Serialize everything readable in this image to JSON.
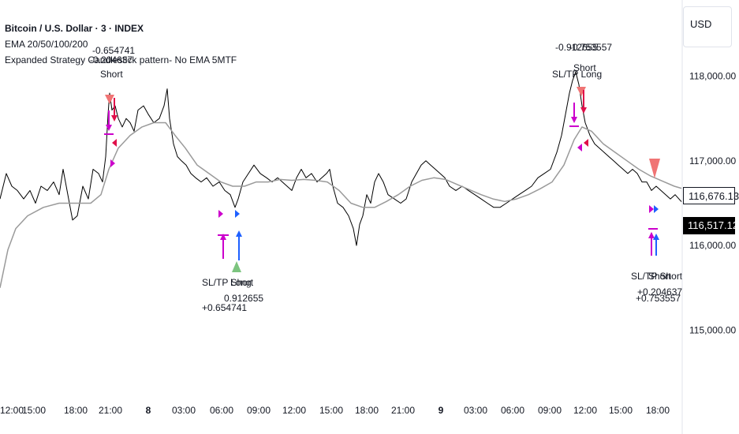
{
  "legend": {
    "symbol": "Bitcoin / U.S. Dollar · 3 · INDEX",
    "indicator1": "EMA 20/50/100/200",
    "indicator2": "Expanded Strategy Candlestick pattern- No EMA 5MTF"
  },
  "currency": "USD",
  "price_tags": {
    "ema": "116,676.13",
    "last": "116,517.12"
  },
  "colors": {
    "price": "#000000",
    "ema": "#9a9a9a",
    "short_marker": "#f07474",
    "long_marker": "#7cc47f",
    "sl_tp": "#cc00cc",
    "exit_short": "#e0104a",
    "exit_long": "#1e60ff"
  },
  "annotations": [
    {
      "id": "a1",
      "text": "-0.654741"
    },
    {
      "id": "a2",
      "text": "-0.204637"
    },
    {
      "id": "a3",
      "text": "Short"
    },
    {
      "id": "a4",
      "text": "-0.912655"
    },
    {
      "id": "a5",
      "text": "-0.753557"
    },
    {
      "id": "a6",
      "text": "SL/TP Long"
    },
    {
      "id": "a7",
      "text": "Short"
    },
    {
      "id": "a8",
      "text": "SL/TP Short"
    },
    {
      "id": "a9",
      "text": "Long"
    },
    {
      "id": "a10",
      "text": "+0.654741"
    },
    {
      "id": "a11",
      "text": "0.912655"
    },
    {
      "id": "a12",
      "text": "SL/TP Short"
    },
    {
      "id": "a13",
      "text": "Short"
    },
    {
      "id": "a14",
      "text": "+0.753557"
    },
    {
      "id": "a15",
      "text": "+0.204637"
    }
  ],
  "chart_data": {
    "type": "line",
    "ylim": [
      114500,
      118900
    ],
    "y_ticks": [
      {
        "value": 118000,
        "label": "118,000.00"
      },
      {
        "value": 117000,
        "label": "117,000.00"
      },
      {
        "value": 116000,
        "label": "116,000.00"
      },
      {
        "value": 115000,
        "label": "115,000.00"
      }
    ],
    "x_range": [
      0,
      920
    ],
    "x_ticks": [
      {
        "pos": 0,
        "label": "12:00",
        "bold": false
      },
      {
        "pos": 43,
        "label": "15:00",
        "bold": false
      },
      {
        "pos": 96,
        "label": "18:00",
        "bold": false
      },
      {
        "pos": 140,
        "label": "21:00",
        "bold": false
      },
      {
        "pos": 188,
        "label": "8",
        "bold": true
      },
      {
        "pos": 233,
        "label": "03:00",
        "bold": false
      },
      {
        "pos": 281,
        "label": "06:00",
        "bold": false
      },
      {
        "pos": 328,
        "label": "09:00",
        "bold": false
      },
      {
        "pos": 373,
        "label": "12:00",
        "bold": false
      },
      {
        "pos": 420,
        "label": "15:00",
        "bold": false
      },
      {
        "pos": 465,
        "label": "18:00",
        "bold": false
      },
      {
        "pos": 511,
        "label": "21:00",
        "bold": false
      },
      {
        "pos": 559,
        "label": "9",
        "bold": true
      },
      {
        "pos": 603,
        "label": "03:00",
        "bold": false
      },
      {
        "pos": 650,
        "label": "06:00",
        "bold": false
      },
      {
        "pos": 697,
        "label": "09:00",
        "bold": false
      },
      {
        "pos": 742,
        "label": "12:00",
        "bold": false
      },
      {
        "pos": 787,
        "label": "15:00",
        "bold": false
      },
      {
        "pos": 834,
        "label": "18:00",
        "bold": false
      }
    ],
    "series": [
      {
        "values": [
          [
            0,
            116550
          ],
          [
            8,
            116850
          ],
          [
            15,
            116700
          ],
          [
            22,
            116650
          ],
          [
            30,
            116550
          ],
          [
            38,
            116650
          ],
          [
            45,
            116500
          ],
          [
            52,
            116700
          ],
          [
            60,
            116650
          ],
          [
            68,
            116750
          ],
          [
            75,
            116600
          ],
          [
            80,
            116900
          ],
          [
            85,
            116650
          ],
          [
            92,
            116300
          ],
          [
            98,
            116350
          ],
          [
            105,
            116700
          ],
          [
            112,
            116550
          ],
          [
            118,
            116900
          ],
          [
            125,
            116850
          ],
          [
            130,
            116750
          ],
          [
            134,
            117050
          ],
          [
            137,
            117550
          ],
          [
            139,
            117800
          ],
          [
            142,
            117600
          ],
          [
            146,
            117650
          ],
          [
            150,
            117500
          ],
          [
            155,
            117400
          ],
          [
            160,
            117500
          ],
          [
            165,
            117450
          ],
          [
            170,
            117350
          ],
          [
            175,
            117600
          ],
          [
            182,
            117650
          ],
          [
            188,
            117550
          ],
          [
            195,
            117450
          ],
          [
            202,
            117500
          ],
          [
            208,
            117650
          ],
          [
            212,
            117850
          ],
          [
            215,
            117500
          ],
          [
            220,
            117200
          ],
          [
            225,
            117050
          ],
          [
            230,
            117000
          ],
          [
            236,
            116950
          ],
          [
            242,
            116850
          ],
          [
            248,
            116800
          ],
          [
            255,
            116750
          ],
          [
            262,
            116800
          ],
          [
            270,
            116700
          ],
          [
            278,
            116750
          ],
          [
            285,
            116650
          ],
          [
            292,
            116600
          ],
          [
            298,
            116450
          ],
          [
            302,
            116550
          ],
          [
            308,
            116750
          ],
          [
            315,
            116850
          ],
          [
            322,
            116950
          ],
          [
            330,
            116850
          ],
          [
            338,
            116800
          ],
          [
            345,
            116750
          ],
          [
            352,
            116800
          ],
          [
            358,
            116750
          ],
          [
            364,
            116700
          ],
          [
            370,
            116650
          ],
          [
            376,
            116800
          ],
          [
            382,
            116900
          ],
          [
            388,
            116800
          ],
          [
            395,
            116850
          ],
          [
            402,
            116750
          ],
          [
            408,
            116800
          ],
          [
            414,
            116850
          ],
          [
            418,
            116900
          ],
          [
            422,
            116700
          ],
          [
            428,
            116500
          ],
          [
            435,
            116450
          ],
          [
            442,
            116350
          ],
          [
            448,
            116200
          ],
          [
            452,
            116000
          ],
          [
            456,
            116250
          ],
          [
            460,
            116350
          ],
          [
            465,
            116600
          ],
          [
            470,
            116500
          ],
          [
            475,
            116750
          ],
          [
            480,
            116850
          ],
          [
            486,
            116750
          ],
          [
            492,
            116600
          ],
          [
            500,
            116550
          ],
          [
            508,
            116500
          ],
          [
            515,
            116550
          ],
          [
            522,
            116750
          ],
          [
            528,
            116850
          ],
          [
            534,
            116950
          ],
          [
            540,
            117000
          ],
          [
            546,
            116950
          ],
          [
            552,
            116900
          ],
          [
            558,
            116850
          ],
          [
            564,
            116800
          ],
          [
            570,
            116700
          ],
          [
            578,
            116650
          ],
          [
            586,
            116700
          ],
          [
            594,
            116650
          ],
          [
            602,
            116600
          ],
          [
            610,
            116550
          ],
          [
            618,
            116500
          ],
          [
            626,
            116450
          ],
          [
            634,
            116450
          ],
          [
            642,
            116500
          ],
          [
            650,
            116550
          ],
          [
            658,
            116600
          ],
          [
            666,
            116650
          ],
          [
            674,
            116700
          ],
          [
            682,
            116800
          ],
          [
            690,
            116850
          ],
          [
            698,
            116900
          ],
          [
            706,
            117100
          ],
          [
            712,
            117300
          ],
          [
            718,
            117600
          ],
          [
            722,
            117800
          ],
          [
            726,
            117950
          ],
          [
            730,
            118050
          ],
          [
            734,
            117900
          ],
          [
            738,
            117650
          ],
          [
            742,
            117450
          ],
          [
            748,
            117300
          ],
          [
            754,
            117200
          ],
          [
            760,
            117150
          ],
          [
            766,
            117100
          ],
          [
            772,
            117050
          ],
          [
            778,
            117000
          ],
          [
            784,
            116950
          ],
          [
            790,
            116900
          ],
          [
            796,
            116850
          ],
          [
            802,
            116900
          ],
          [
            808,
            116850
          ],
          [
            814,
            116750
          ],
          [
            820,
            116750
          ],
          [
            826,
            116650
          ],
          [
            832,
            116700
          ],
          [
            838,
            116650
          ],
          [
            844,
            116600
          ],
          [
            850,
            116550
          ],
          [
            856,
            116600
          ],
          [
            864,
            116517
          ]
        ]
      },
      {
        "values": [
          [
            0,
            115500
          ],
          [
            10,
            115950
          ],
          [
            20,
            116200
          ],
          [
            35,
            116350
          ],
          [
            55,
            116450
          ],
          [
            75,
            116500
          ],
          [
            95,
            116500
          ],
          [
            115,
            116500
          ],
          [
            128,
            116600
          ],
          [
            138,
            116900
          ],
          [
            150,
            117150
          ],
          [
            165,
            117300
          ],
          [
            180,
            117400
          ],
          [
            195,
            117450
          ],
          [
            210,
            117450
          ],
          [
            222,
            117300
          ],
          [
            235,
            117150
          ],
          [
            250,
            116950
          ],
          [
            265,
            116850
          ],
          [
            280,
            116750
          ],
          [
            295,
            116700
          ],
          [
            310,
            116700
          ],
          [
            325,
            116750
          ],
          [
            340,
            116750
          ],
          [
            355,
            116780
          ],
          [
            370,
            116770
          ],
          [
            385,
            116780
          ],
          [
            400,
            116770
          ],
          [
            415,
            116750
          ],
          [
            430,
            116650
          ],
          [
            445,
            116500
          ],
          [
            460,
            116450
          ],
          [
            475,
            116450
          ],
          [
            490,
            116520
          ],
          [
            505,
            116600
          ],
          [
            520,
            116700
          ],
          [
            535,
            116770
          ],
          [
            550,
            116800
          ],
          [
            565,
            116780
          ],
          [
            580,
            116720
          ],
          [
            595,
            116660
          ],
          [
            610,
            116600
          ],
          [
            625,
            116550
          ],
          [
            640,
            116520
          ],
          [
            655,
            116550
          ],
          [
            670,
            116600
          ],
          [
            685,
            116670
          ],
          [
            700,
            116750
          ],
          [
            715,
            116950
          ],
          [
            728,
            117250
          ],
          [
            738,
            117400
          ],
          [
            750,
            117350
          ],
          [
            765,
            117200
          ],
          [
            780,
            117100
          ],
          [
            795,
            117000
          ],
          [
            810,
            116900
          ],
          [
            825,
            116820
          ],
          [
            840,
            116760
          ],
          [
            855,
            116700
          ],
          [
            864,
            116676
          ]
        ]
      }
    ]
  }
}
